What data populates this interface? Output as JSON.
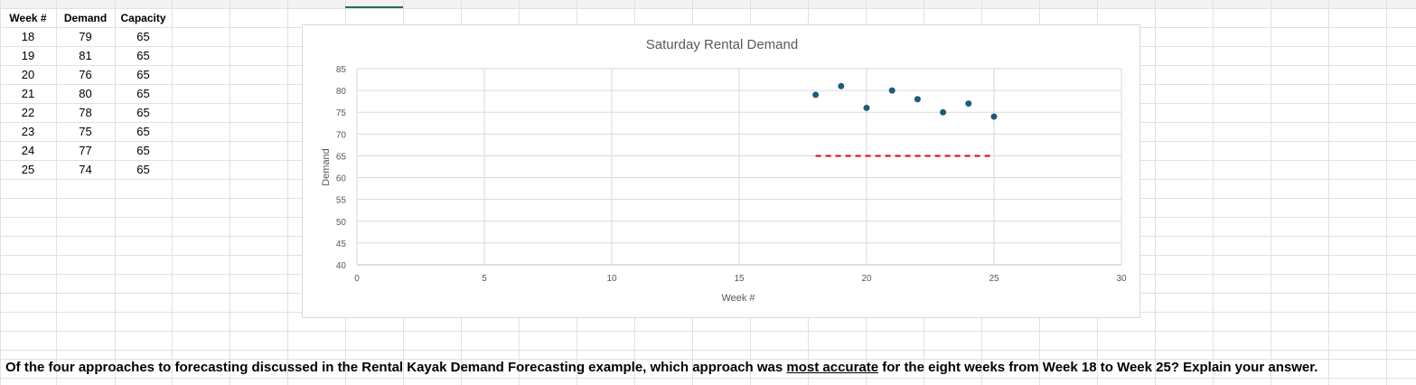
{
  "table": {
    "headers": [
      "Week #",
      "Demand",
      "Capacity"
    ],
    "rows": [
      [
        "18",
        "79",
        "65"
      ],
      [
        "19",
        "81",
        "65"
      ],
      [
        "20",
        "76",
        "65"
      ],
      [
        "21",
        "80",
        "65"
      ],
      [
        "22",
        "78",
        "65"
      ],
      [
        "23",
        "75",
        "65"
      ],
      [
        "24",
        "77",
        "65"
      ],
      [
        "25",
        "74",
        "65"
      ]
    ]
  },
  "chart_data": {
    "type": "scatter",
    "title": "Saturday Rental Demand",
    "xlabel": "Week #",
    "ylabel": "Demand",
    "xlim": [
      0,
      30
    ],
    "ylim": [
      40,
      85
    ],
    "xticks": [
      0,
      5,
      10,
      15,
      20,
      25,
      30
    ],
    "yticks": [
      40,
      45,
      50,
      55,
      60,
      65,
      70,
      75,
      80,
      85
    ],
    "grid": true,
    "legend": "none",
    "series": [
      {
        "type": "scatter",
        "x": [
          18,
          19,
          20,
          21,
          22,
          23,
          24,
          25
        ],
        "y": [
          79,
          81,
          76,
          80,
          78,
          75,
          77,
          74
        ],
        "color": "#1f5c7a"
      },
      {
        "type": "line",
        "style": "dashed",
        "x": [
          18,
          25
        ],
        "y": [
          65,
          65
        ],
        "color": "#e00000"
      }
    ]
  },
  "question": {
    "before": "Of the four approaches to forecasting discussed in the Rental Kayak Demand Forecasting example, which approach was ",
    "emphasis": "most accurate",
    "after": " for the eight weeks from Week 18 to Week 25? Explain your answer."
  },
  "colors": {
    "gridline": "#e1e1e1",
    "chart_gridline": "#d9d9d9",
    "selected_column_marker": "#217346"
  }
}
